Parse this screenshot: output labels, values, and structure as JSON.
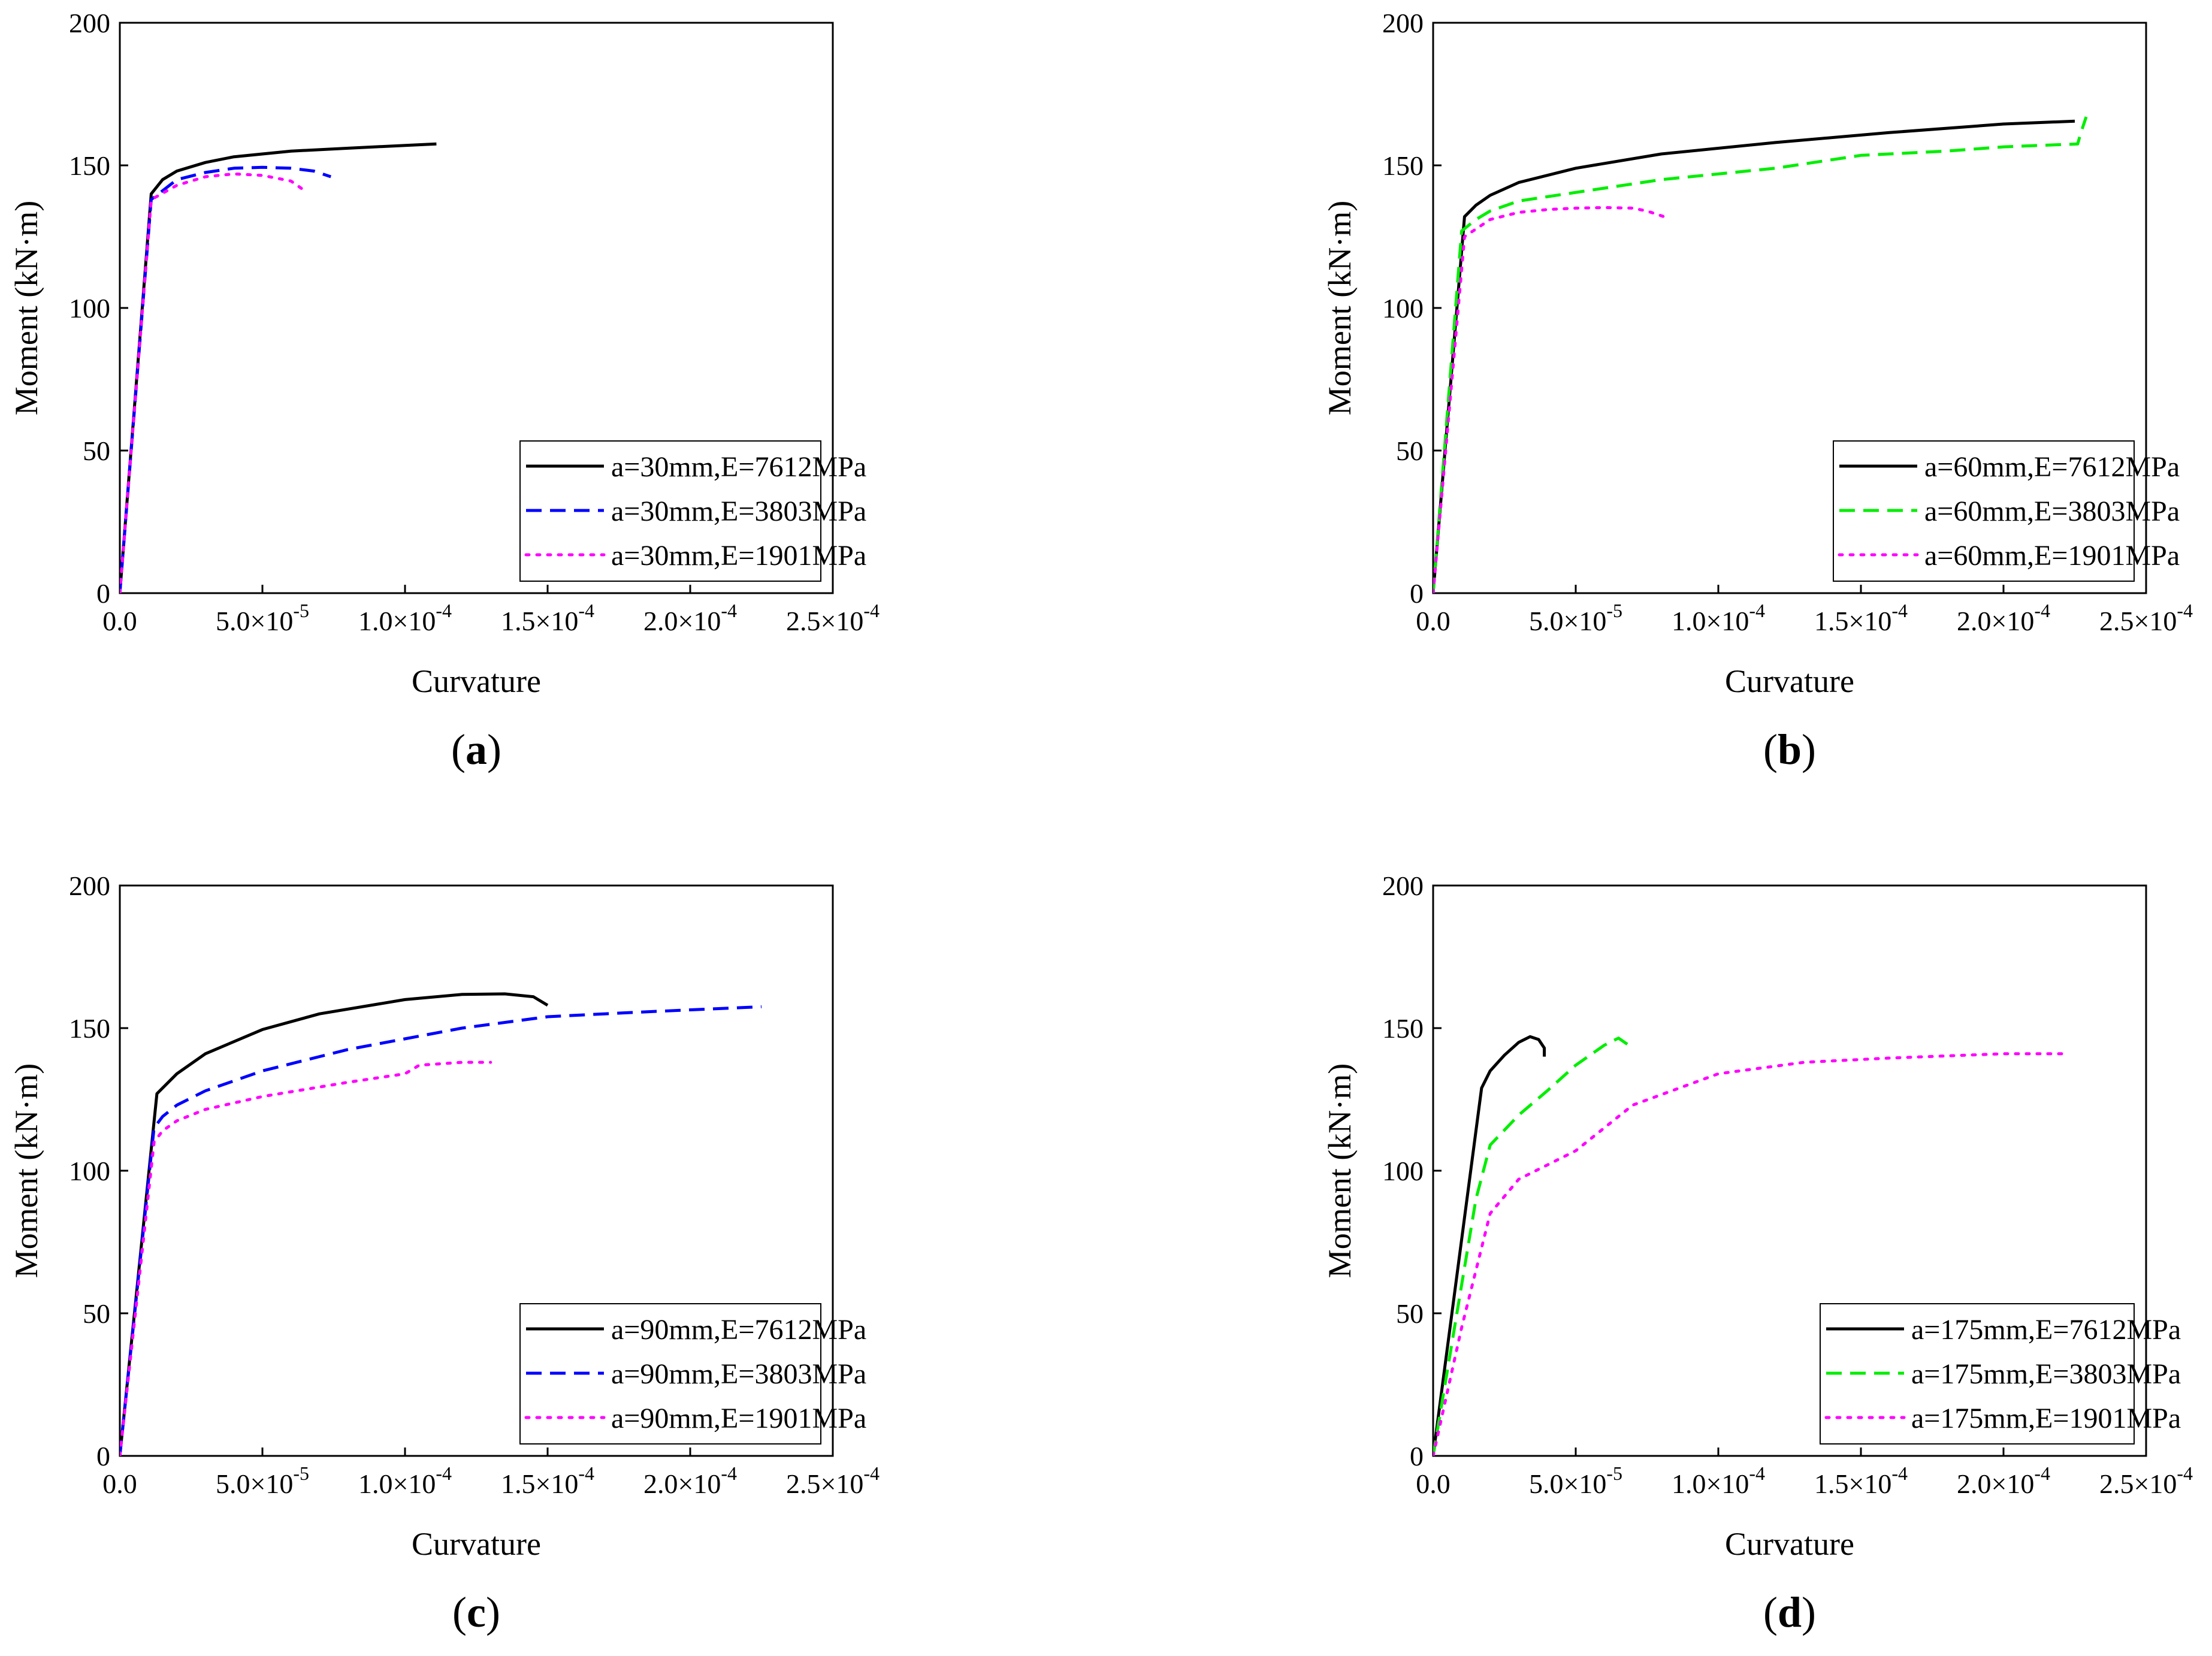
{
  "chart_data": [
    {
      "type": "line",
      "panel_label": "a",
      "xlabel": "Curvature",
      "ylabel": "Moment (kN·m)",
      "xlim": [
        0,
        0.00025
      ],
      "ylim": [
        0,
        200
      ],
      "x_tick_labels": [
        {
          "mantissa": "0.0",
          "exponent": ""
        },
        {
          "mantissa": "5.0×10",
          "exponent": "-5"
        },
        {
          "mantissa": "1.0×10",
          "exponent": "-4"
        },
        {
          "mantissa": "1.5×10",
          "exponent": "-4"
        },
        {
          "mantissa": "2.0×10",
          "exponent": "-4"
        },
        {
          "mantissa": "2.5×10",
          "exponent": "-4"
        }
      ],
      "y_tick_labels": [
        "0",
        "50",
        "100",
        "150",
        "200"
      ],
      "legend_position": "bottom-right",
      "series": [
        {
          "name": "a=30mm,E=7612MPa",
          "color": "#000000",
          "style": "solid",
          "x": [
            0,
            1.1e-05,
            1.5e-05,
            2e-05,
            3e-05,
            4e-05,
            6e-05,
            8e-05,
            0.0001,
            0.000111
          ],
          "y": [
            0,
            140,
            145,
            148,
            151,
            153,
            155,
            156,
            157,
            157.5
          ]
        },
        {
          "name": "a=30mm,E=3803MPa",
          "color": "#0000ff",
          "style": "dashed",
          "x": [
            0,
            1.1e-05,
            2e-05,
            3e-05,
            4e-05,
            5e-05,
            6e-05,
            6.8e-05,
            7.4e-05
          ],
          "y": [
            0,
            138,
            145,
            147.5,
            149,
            149.3,
            149,
            148,
            146
          ]
        },
        {
          "name": "a=30mm,E=1901MPa",
          "color": "#ff00ff",
          "style": "dotted",
          "x": [
            0,
            1.1e-05,
            2e-05,
            3e-05,
            4e-05,
            5e-05,
            6e-05,
            6.5e-05
          ],
          "y": [
            0,
            138,
            143,
            146,
            147,
            146.5,
            144.5,
            141
          ]
        }
      ]
    },
    {
      "type": "line",
      "panel_label": "b",
      "xlabel": "Curvature",
      "ylabel": "Moment (kN·m)",
      "xlim": [
        0,
        0.00025
      ],
      "ylim": [
        0,
        200
      ],
      "x_tick_labels": [
        {
          "mantissa": "0.0",
          "exponent": ""
        },
        {
          "mantissa": "5.0×10",
          "exponent": "-5"
        },
        {
          "mantissa": "1.0×10",
          "exponent": "-4"
        },
        {
          "mantissa": "1.5×10",
          "exponent": "-4"
        },
        {
          "mantissa": "2.0×10",
          "exponent": "-4"
        },
        {
          "mantissa": "2.5×10",
          "exponent": "-4"
        }
      ],
      "y_tick_labels": [
        "0",
        "50",
        "100",
        "150",
        "200"
      ],
      "legend_position": "bottom-right",
      "series": [
        {
          "name": "a=60mm,E=7612MPa",
          "color": "#000000",
          "style": "solid",
          "x": [
            0,
            1.1e-05,
            1.5e-05,
            2e-05,
            3e-05,
            5e-05,
            8e-05,
            0.00012,
            0.00016,
            0.0002,
            0.000225
          ],
          "y": [
            0,
            132,
            136,
            139.5,
            144,
            149,
            154,
            158,
            161.5,
            164.5,
            165.5
          ]
        },
        {
          "name": "a=60mm,E=3803MPa",
          "color": "#00ee00",
          "style": "dashed",
          "x": [
            0,
            1e-05,
            1.5e-05,
            2e-05,
            3e-05,
            5e-05,
            8e-05,
            0.00012,
            0.00015,
            0.00018,
            0.0002,
            0.000226,
            0.000227,
            0.000229
          ],
          "y": [
            0,
            127,
            131,
            134,
            137.5,
            140.5,
            145,
            149,
            153.5,
            155,
            156.5,
            157.5,
            161,
            167
          ]
        },
        {
          "name": "a=60mm,E=1901MPa",
          "color": "#ff00ff",
          "style": "dotted",
          "x": [
            0,
            1.1e-05,
            2e-05,
            3e-05,
            4e-05,
            5e-05,
            6e-05,
            7e-05,
            7.5e-05,
            8.1e-05
          ],
          "y": [
            0,
            125,
            131,
            133.5,
            134.5,
            135,
            135.2,
            135,
            134,
            132
          ]
        }
      ]
    },
    {
      "type": "line",
      "panel_label": "c",
      "xlabel": "Curvature",
      "ylabel": "Moment (kN·m)",
      "xlim": [
        0,
        0.00025
      ],
      "ylim": [
        0,
        200
      ],
      "x_tick_labels": [
        {
          "mantissa": "0.0",
          "exponent": ""
        },
        {
          "mantissa": "5.0×10",
          "exponent": "-5"
        },
        {
          "mantissa": "1.0×10",
          "exponent": "-4"
        },
        {
          "mantissa": "1.5×10",
          "exponent": "-4"
        },
        {
          "mantissa": "2.0×10",
          "exponent": "-4"
        },
        {
          "mantissa": "2.5×10",
          "exponent": "-4"
        }
      ],
      "y_tick_labels": [
        "0",
        "50",
        "100",
        "150",
        "200"
      ],
      "legend_position": "bottom-right",
      "series": [
        {
          "name": "a=90mm,E=7612MPa",
          "color": "#000000",
          "style": "solid",
          "x": [
            0,
            1.3e-05,
            2e-05,
            3e-05,
            5e-05,
            7e-05,
            0.0001,
            0.00012,
            0.000135,
            0.000145,
            0.00015
          ],
          "y": [
            0,
            127,
            134,
            141,
            149.5,
            155,
            160,
            161.8,
            162,
            161,
            158
          ]
        },
        {
          "name": "a=90mm,E=3803MPa",
          "color": "#0000ff",
          "style": "dashed",
          "x": [
            0,
            1.2e-05,
            1.5e-05,
            2e-05,
            3e-05,
            5e-05,
            8e-05,
            0.00012,
            0.00015,
            0.00018,
            0.000225
          ],
          "y": [
            0,
            115,
            119,
            123,
            128,
            135,
            142.5,
            150,
            154,
            155.5,
            157.5
          ]
        },
        {
          "name": "a=90mm,E=1901MPa",
          "color": "#ff00ff",
          "style": "dotted",
          "x": [
            0,
            1.2e-05,
            1.5e-05,
            2e-05,
            3e-05,
            5e-05,
            8e-05,
            0.0001,
            0.000105,
            0.00012,
            0.00013
          ],
          "y": [
            0,
            110,
            114,
            117.5,
            121.5,
            126,
            131,
            134,
            137,
            138,
            138
          ]
        }
      ]
    },
    {
      "type": "line",
      "panel_label": "d",
      "xlabel": "Curvature",
      "ylabel": "Moment (kN·m)",
      "xlim": [
        0,
        0.00025
      ],
      "ylim": [
        0,
        200
      ],
      "x_tick_labels": [
        {
          "mantissa": "0.0",
          "exponent": ""
        },
        {
          "mantissa": "5.0×10",
          "exponent": "-5"
        },
        {
          "mantissa": "1.0×10",
          "exponent": "-4"
        },
        {
          "mantissa": "1.5×10",
          "exponent": "-4"
        },
        {
          "mantissa": "2.0×10",
          "exponent": "-4"
        },
        {
          "mantissa": "2.5×10",
          "exponent": "-4"
        }
      ],
      "y_tick_labels": [
        "0",
        "50",
        "100",
        "150",
        "200"
      ],
      "legend_position": "bottom-right",
      "series": [
        {
          "name": "a=175mm,E=7612MPa",
          "color": "#000000",
          "style": "solid",
          "x": [
            0,
            1.7e-05,
            2e-05,
            2.5e-05,
            3e-05,
            3.4e-05,
            3.7e-05,
            3.9e-05,
            3.9e-05
          ],
          "y": [
            0,
            129,
            135,
            140.5,
            145,
            147,
            146,
            143,
            140
          ]
        },
        {
          "name": "a=175mm,E=3803MPa",
          "color": "#00ee00",
          "style": "dashed",
          "x": [
            0,
            1e-05,
            1.5e-05,
            2e-05,
            3e-05,
            4e-05,
            5e-05,
            6e-05,
            6.5e-05,
            7e-05
          ],
          "y": [
            0,
            60,
            90,
            109,
            119.5,
            128,
            137,
            144,
            146.5,
            143
          ]
        },
        {
          "name": "a=175mm,E=1901MPa",
          "color": "#ff00ff",
          "style": "dotted",
          "x": [
            0,
            1e-05,
            2e-05,
            3e-05,
            5e-05,
            7e-05,
            0.0001,
            0.00013,
            0.00016,
            0.0002,
            0.000223
          ],
          "y": [
            0,
            45,
            85,
            97,
            107,
            123,
            134,
            138,
            139.5,
            141,
            141
          ]
        }
      ]
    }
  ]
}
